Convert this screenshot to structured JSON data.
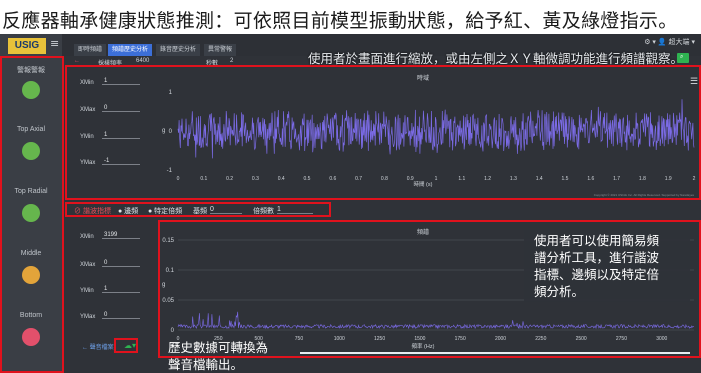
{
  "banner": {
    "title": "反應器軸承健康狀態推測：可依照目前模型振動狀態，給予紅、黃及綠燈指示。"
  },
  "app": {
    "logo": "USIG",
    "user": "⚙ ▾  👤 超大端 ▾",
    "tabs": [
      "即時頻譜",
      "頻譜歷史分析",
      "錄音歷史分析",
      "異常警報"
    ],
    "active_tab": 1
  },
  "sidebar": {
    "items": [
      {
        "label": "警報警報",
        "status": "green"
      },
      {
        "label": "Top Axial",
        "status": "green"
      },
      {
        "label": "Top Radial",
        "status": "green"
      },
      {
        "label": "Middle",
        "status": "yellow"
      },
      {
        "label": "Bottom",
        "status": "red"
      }
    ]
  },
  "time_panel": {
    "sample_label": "採樣頻率",
    "sample_value": "6400",
    "seconds_label": "秒數",
    "seconds_value": "2",
    "xmin_label": "XMin",
    "xmin_value": "1",
    "xmax_label": "XMax",
    "xmax_value": "0",
    "ymin_label": "YMin",
    "ymin_value": "1",
    "ymax_label": "YMax",
    "ymax_value": "-1",
    "chart_title": "時域",
    "xlabel": "時間 (s)",
    "copyright": "Copyright © 2021 USInfo Inc. All Rights Reserved. Supported by NanoEyes"
  },
  "freq_panel": {
    "xmin_label": "XMin",
    "xmin_value": "3199",
    "xmax_label": "XMax",
    "xmax_value": "0",
    "ymin_label": "YMin",
    "ymin_value": "1",
    "ymax_label": "YMax",
    "ymax_value": "0",
    "chart_title": "頻譜",
    "xlabel": "頻率 (Hz)",
    "export_label": "← 聲音檔案",
    "export_icon": "download-cloud-icon"
  },
  "tools": {
    "bearing": "⊘ 諧波指標",
    "sideband": "● 邊頻",
    "multiple": "● 特定倍頻",
    "base_freq_label": "基頻",
    "base_freq_value": "0",
    "multiple_label": "倍頻數",
    "multiple_value": "1"
  },
  "annotations": {
    "zoom": "使用者於畫面進行縮放，或由左側之ＸＹ軸微調功能進行頻譜觀察。",
    "spectrum": [
      "使用者可以使用簡易頻",
      "譜分析工具，進行諧波",
      "指標、邊頻以及特定倍",
      "頻分析。"
    ],
    "export": [
      "歷史數據可轉換為",
      "聲音檔輸出。"
    ]
  },
  "colors": {
    "green": "#66b64d",
    "yellow": "#e3a43a",
    "red": "#e2506b",
    "signal": "#7b6be6",
    "annotation_border": "#e0121d"
  },
  "chart_data": [
    {
      "type": "line",
      "title": "時域",
      "xlabel": "時間 (s)",
      "ylabel": "g",
      "xlim": [
        0,
        2
      ],
      "ylim": [
        -1,
        1
      ],
      "xticks": [
        0,
        0.1,
        0.2,
        0.3,
        0.4,
        0.5,
        0.6,
        0.7,
        0.8,
        0.9,
        1,
        1.1,
        1.2,
        1.3,
        1.4,
        1.5,
        1.6,
        1.7,
        1.8,
        1.9,
        2
      ],
      "yticks": [
        1,
        0,
        -1
      ],
      "grid": false
    },
    {
      "type": "line",
      "title": "頻譜",
      "xlabel": "頻率 (Hz)",
      "ylabel": "g",
      "xlim": [
        0,
        3200
      ],
      "ylim": [
        0,
        0.15
      ],
      "xticks": [
        0,
        250,
        500,
        750,
        1000,
        1250,
        1500,
        1750,
        2000,
        2250,
        2500,
        2750,
        3000
      ],
      "yticks": [
        0.15,
        0.1,
        0.05,
        0
      ],
      "grid": true
    }
  ]
}
